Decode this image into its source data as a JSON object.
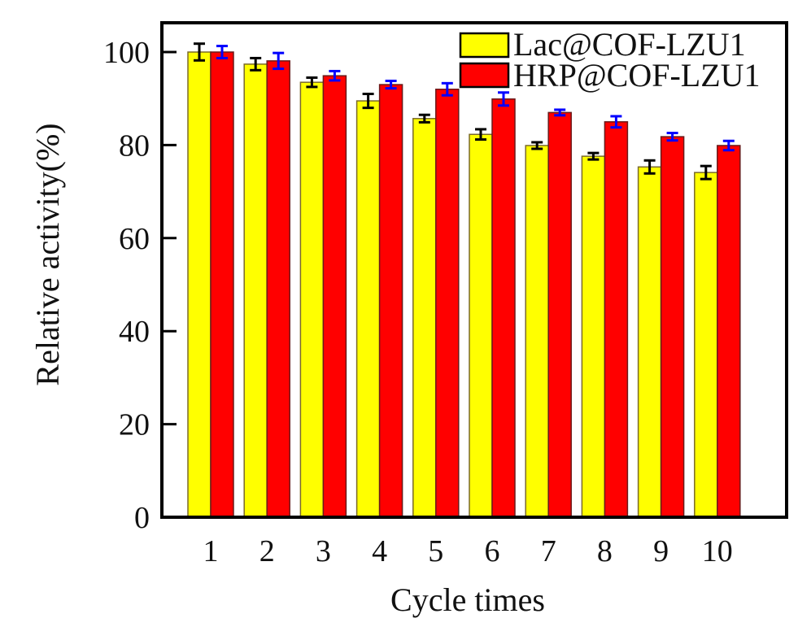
{
  "chart_data": {
    "type": "bar",
    "title": "",
    "xlabel": "Cycle times",
    "ylabel": "Relative activity(%)",
    "categories": [
      "1",
      "2",
      "3",
      "4",
      "5",
      "6",
      "7",
      "8",
      "9",
      "10"
    ],
    "ylim": [
      0,
      106
    ],
    "yticks": [
      0,
      20,
      40,
      60,
      80,
      100
    ],
    "ytick_labels": [
      "0",
      "20",
      "40",
      "60",
      "80",
      "100"
    ],
    "grid": false,
    "legend_position": "top-right",
    "series": [
      {
        "name": "Lac@COF-LZU1",
        "color": "#ffff00",
        "error_color": "#000000",
        "values": [
          100.0,
          97.4,
          93.5,
          89.5,
          85.7,
          82.3,
          79.9,
          77.6,
          75.3,
          74.1
        ],
        "errors": [
          1.8,
          1.3,
          1.0,
          1.5,
          0.8,
          1.1,
          0.7,
          0.7,
          1.4,
          1.4
        ]
      },
      {
        "name": "HRP@COF-LZU1",
        "color": "#ff0000",
        "error_color": "#0000ff",
        "values": [
          100.0,
          98.1,
          94.9,
          93.0,
          92.0,
          89.9,
          87.0,
          85.0,
          81.8,
          79.9
        ],
        "errors": [
          1.3,
          1.7,
          1.0,
          0.8,
          1.3,
          1.4,
          0.6,
          1.2,
          0.8,
          1.0
        ]
      }
    ]
  }
}
